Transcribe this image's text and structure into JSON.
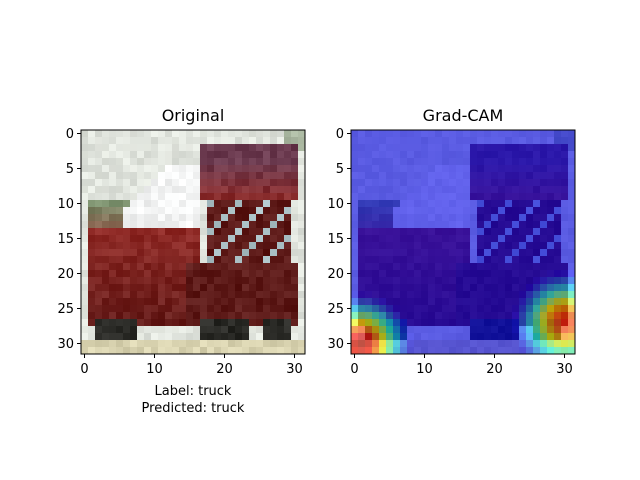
{
  "chart_data": [
    {
      "type": "heatmap",
      "title": "Original",
      "xlabel": "",
      "ylabel": "",
      "x_range": [
        -0.5,
        31.5
      ],
      "y_range": [
        -0.5,
        31.5
      ],
      "y_inverted": true,
      "x_ticks": [
        0,
        10,
        20,
        30
      ],
      "y_ticks": [
        0,
        5,
        10,
        15,
        20,
        25,
        30
      ],
      "grid": false,
      "caption_lines": [
        "Label: truck",
        "Predicted: truck"
      ],
      "image_content": "pixelated photo of a red truck",
      "colors": {
        "background": "#eceeea",
        "cab_white": "#f3f4f4",
        "truck_red": "#8f2a26",
        "dark_red": "#5d1a18",
        "cargo_top": "#6b3a4f",
        "tint_green": "#7a8f6c",
        "window": "#a9bfc4",
        "wheel": "#2a2a26",
        "ground": "#d9d3b0"
      }
    },
    {
      "type": "heatmap",
      "title": "Grad-CAM",
      "xlabel": "",
      "ylabel": "",
      "x_range": [
        -0.5,
        31.5
      ],
      "y_range": [
        -0.5,
        31.5
      ],
      "y_inverted": true,
      "x_ticks": [
        0,
        10,
        20,
        30
      ],
      "y_ticks": [
        0,
        5,
        10,
        15,
        20,
        25,
        30
      ],
      "grid": false,
      "image_content": "same truck image overlaid with Grad-CAM jet-colormap heatmap; activation peaks at bottom-left and bottom-right corners",
      "hotspots": [
        {
          "x": 1,
          "y": 30,
          "intensity": 0.95,
          "spread": 3.4
        },
        {
          "x": 30,
          "y": 27,
          "intensity": 0.85,
          "spread": 3.6
        }
      ],
      "colors": {
        "overlay_base": "#6e6fb6"
      }
    }
  ]
}
